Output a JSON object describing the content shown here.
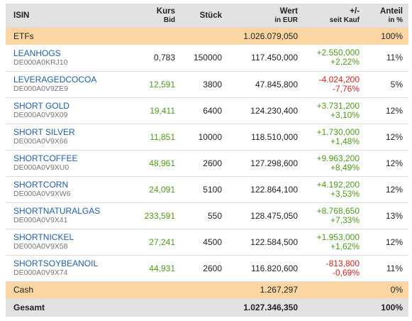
{
  "header": {
    "isin": "ISIN",
    "kurs_top": "Kurs",
    "kurs_sub": "Bid",
    "stueck": "Stück",
    "wert_top": "Wert",
    "wert_sub": "in EUR",
    "diff_top": "+/-",
    "diff_sub": "seit Kauf",
    "anteil_top": "Anteil",
    "anteil_sub": "in %"
  },
  "etf_group": {
    "label": "ETFs",
    "wert": "1.026.079,050",
    "anteil": "100%"
  },
  "rows": [
    {
      "name": "LEANHOGS",
      "isin": "DE000A0KRJ10",
      "kurs": "0,783",
      "kurs_trend": "plain",
      "stueck": "150000",
      "wert": "117.450,000",
      "diff_abs": "+2.550,000",
      "diff_pct": "+2,22%",
      "diff_trend": "green",
      "anteil": "11%"
    },
    {
      "name": "LEVERAGEDCOCOA",
      "isin": "DE000A0V9ZE9",
      "kurs": "12,591",
      "kurs_trend": "green",
      "stueck": "3800",
      "wert": "47.845,800",
      "diff_abs": "-4.024,200",
      "diff_pct": "-7,76%",
      "diff_trend": "red",
      "anteil": "5%"
    },
    {
      "name": "SHORT GOLD",
      "isin": "DE000A0V9X09",
      "kurs": "19,411",
      "kurs_trend": "green",
      "stueck": "6400",
      "wert": "124.230,400",
      "diff_abs": "+3.731,200",
      "diff_pct": "+3,10%",
      "diff_trend": "green",
      "anteil": "12%"
    },
    {
      "name": "SHORT SILVER",
      "isin": "DE000A0V9X66",
      "kurs": "11,851",
      "kurs_trend": "green",
      "stueck": "10000",
      "wert": "118.510,000",
      "diff_abs": "+1.730,000",
      "diff_pct": "+1,48%",
      "diff_trend": "green",
      "anteil": "12%"
    },
    {
      "name": "SHORTCOFFEE",
      "isin": "DE000A0V9XU0",
      "kurs": "48,961",
      "kurs_trend": "green",
      "stueck": "2600",
      "wert": "127.298,600",
      "diff_abs": "+9.963,200",
      "diff_pct": "+8,49%",
      "diff_trend": "green",
      "anteil": "12%"
    },
    {
      "name": "SHORTCORN",
      "isin": "DE000A0V9XW6",
      "kurs": "24,091",
      "kurs_trend": "green",
      "stueck": "5100",
      "wert": "122.864,100",
      "diff_abs": "+4.192,200",
      "diff_pct": "+3,53%",
      "diff_trend": "green",
      "anteil": "12%"
    },
    {
      "name": "SHORTNATURALGAS",
      "isin": "DE000A0V9X41",
      "kurs": "233,591",
      "kurs_trend": "green",
      "stueck": "550",
      "wert": "128.475,050",
      "diff_abs": "+8.768,650",
      "diff_pct": "+7,33%",
      "diff_trend": "green",
      "anteil": "13%"
    },
    {
      "name": "SHORTNICKEL",
      "isin": "DE000A0V9X58",
      "kurs": "27,241",
      "kurs_trend": "green",
      "stueck": "4500",
      "wert": "122.584,500",
      "diff_abs": "+1.953,000",
      "diff_pct": "+1,62%",
      "diff_trend": "green",
      "anteil": "12%"
    },
    {
      "name": "SHORTSOYBEANOIL",
      "isin": "DE000A0V9X74",
      "kurs": "44,931",
      "kurs_trend": "green",
      "stueck": "2600",
      "wert": "116.820,600",
      "diff_abs": "-813,800",
      "diff_pct": "-0,69%",
      "diff_trend": "red",
      "anteil": "11%"
    }
  ],
  "cash_group": {
    "label": "Cash",
    "wert": "1.267,297",
    "anteil": "0%"
  },
  "total": {
    "label": "Gesamt",
    "wert": "1.027.346,350",
    "anteil": "100%"
  },
  "colors": {
    "header_bg": "#e2e2e2",
    "group_bg": "#fbd6a2",
    "link": "#1f5ea8",
    "positive": "#4f9a1c",
    "negative": "#d8231c"
  }
}
